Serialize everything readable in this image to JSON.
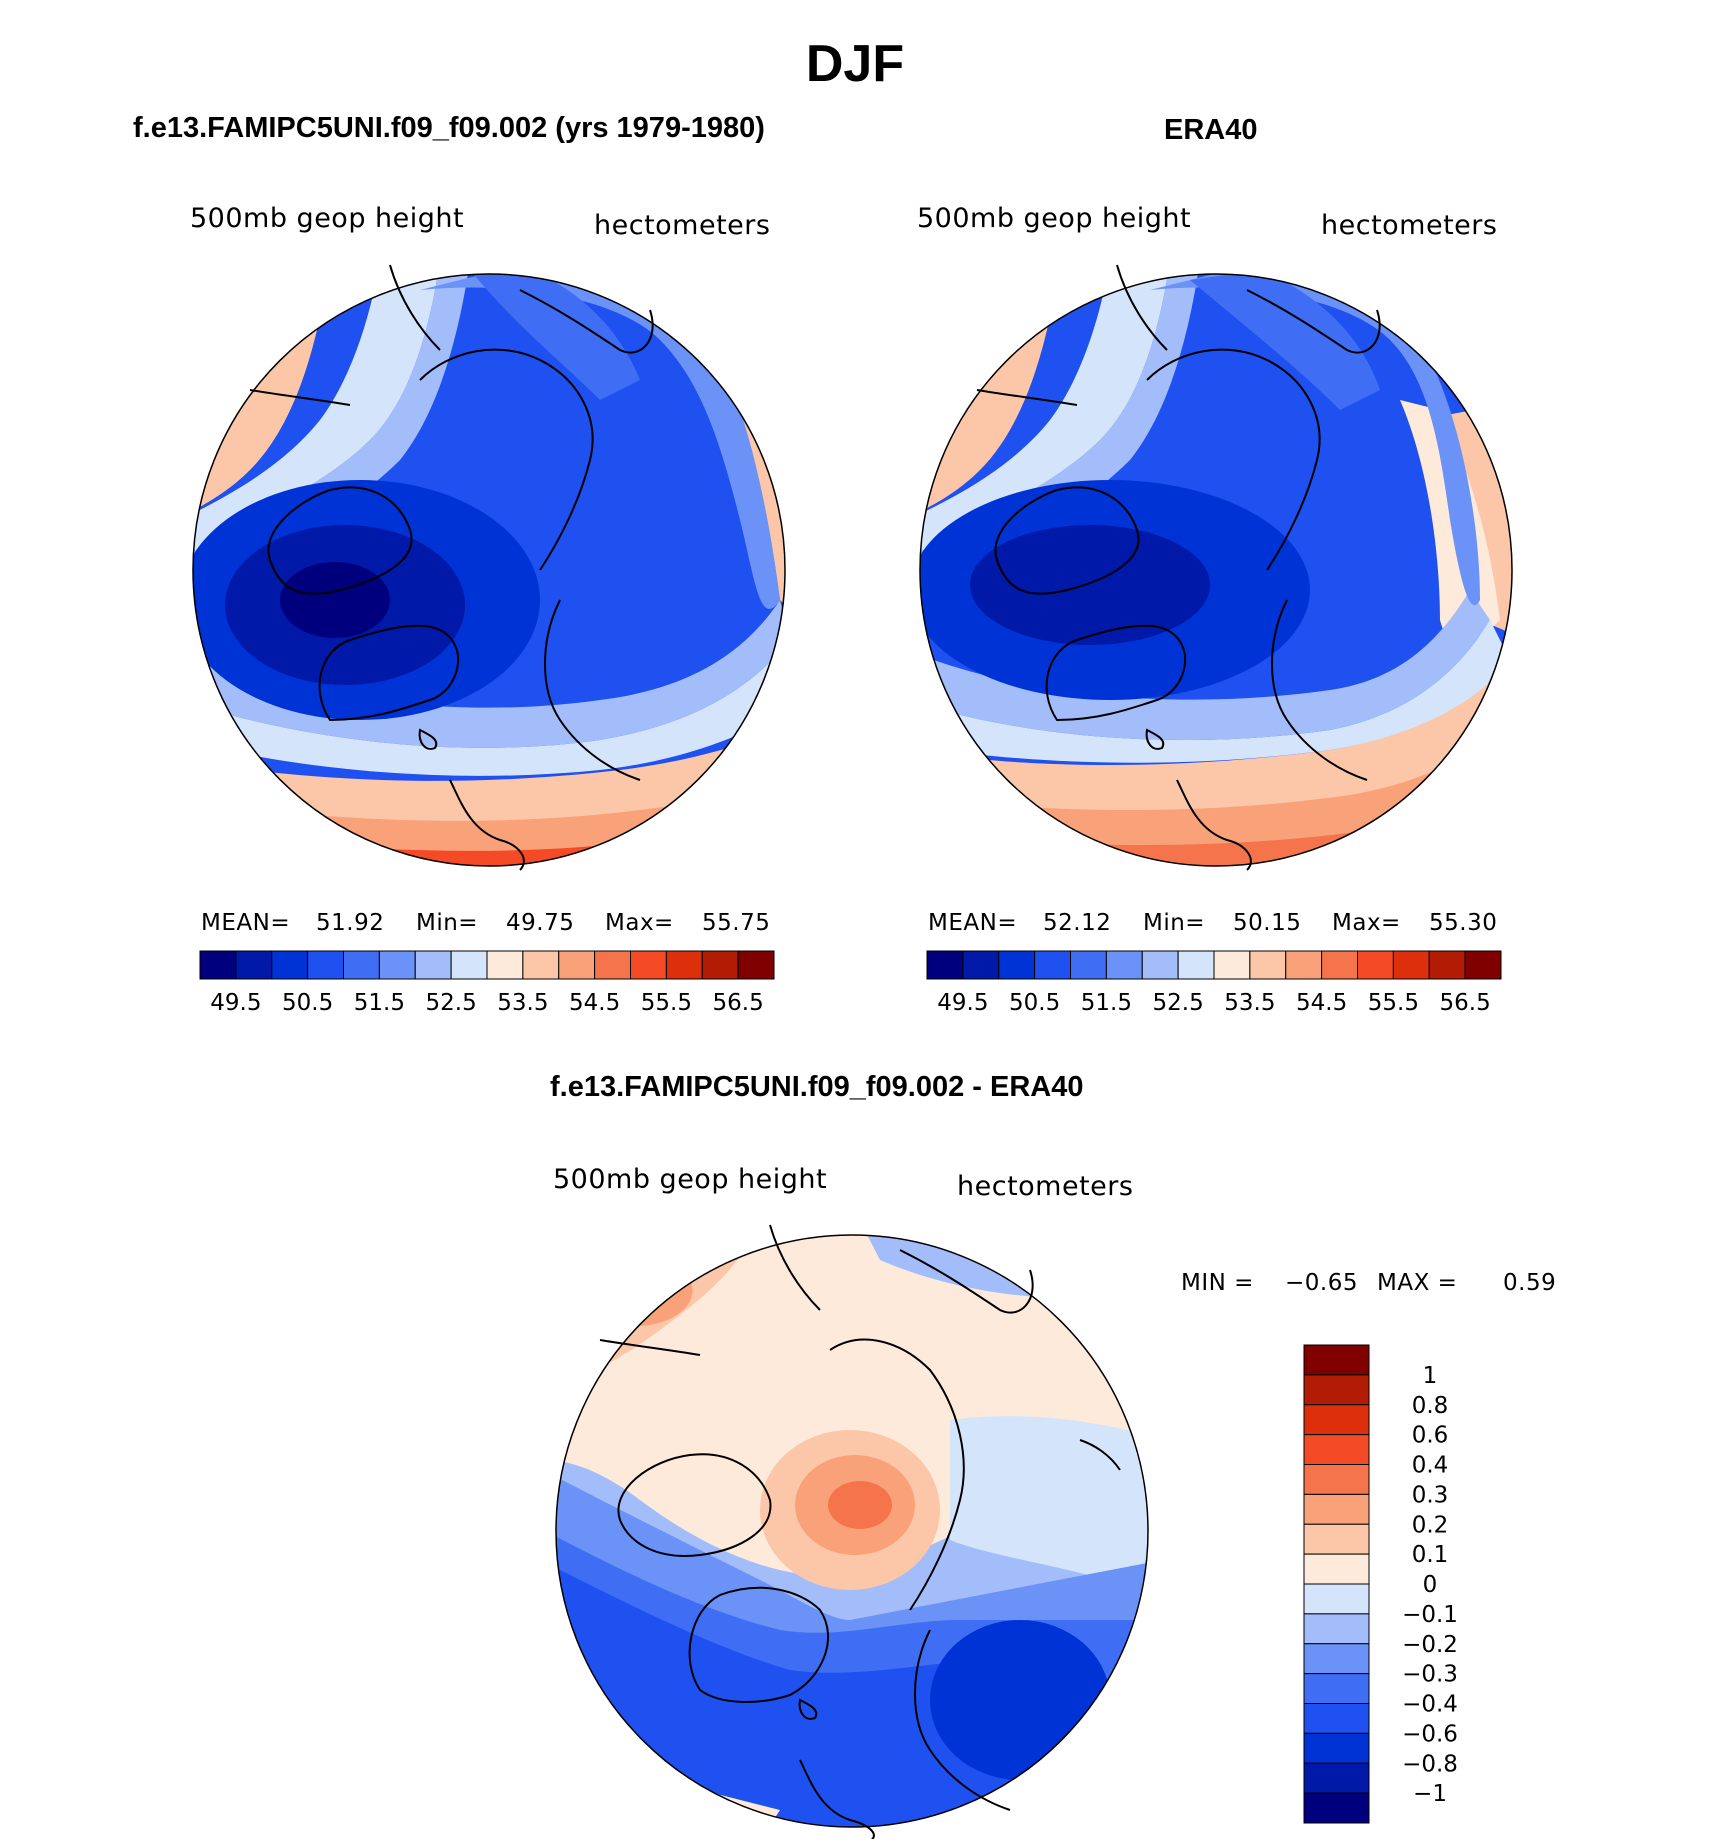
{
  "figure": {
    "title": "DJF"
  },
  "chart_data": [
    {
      "type": "heatmap",
      "panel": "model",
      "title": "f.e13.FAMIPC5UNI.f09_f09.002 (yrs 1979-1980)",
      "left_label": "500mb geop height",
      "right_label": "hectometers",
      "stats": {
        "mean_label": "MEAN=",
        "mean": "51.92",
        "min_label": "Min=",
        "min": "49.75",
        "max_label": "Max=",
        "max": "55.75"
      },
      "colorbar_ticks": [
        "49.5",
        "50.5",
        "51.5",
        "52.5",
        "53.5",
        "54.5",
        "55.5",
        "56.5"
      ]
    },
    {
      "type": "heatmap",
      "panel": "obs",
      "title": "ERA40",
      "left_label": "500mb geop height",
      "right_label": "hectometers",
      "stats": {
        "mean_label": "MEAN=",
        "mean": "52.12",
        "min_label": "Min=",
        "min": "50.15",
        "max_label": "Max=",
        "max": "55.30"
      },
      "colorbar_ticks": [
        "49.5",
        "50.5",
        "51.5",
        "52.5",
        "53.5",
        "54.5",
        "55.5",
        "56.5"
      ]
    },
    {
      "type": "heatmap",
      "panel": "difference",
      "title": "f.e13.FAMIPC5UNI.f09_f09.002 - ERA40",
      "left_label": "500mb geop height",
      "right_label": "hectometers",
      "stats": {
        "min_label": "MIN =",
        "min": "−0.65",
        "max_label": "MAX =",
        "max": "0.59"
      },
      "colorbar_ticks": [
        "1",
        "0.8",
        "0.6",
        "0.4",
        "0.3",
        "0.2",
        "0.1",
        "0",
        "−0.1",
        "−0.2",
        "−0.3",
        "−0.4",
        "−0.6",
        "−0.8",
        "−1"
      ]
    }
  ],
  "colors": {
    "mean_colorbar": [
      "#00007f",
      "#0019a8",
      "#0033d6",
      "#1f50f0",
      "#3f6ef5",
      "#6a92f7",
      "#a3bdfa",
      "#d4e5fb",
      "#fdeadb",
      "#fbc7a8",
      "#f9a27a",
      "#f6744c",
      "#f44a26",
      "#de2f0c",
      "#b31c04",
      "#800000"
    ],
    "diff_colorbar": [
      "#800000",
      "#b31c04",
      "#de2f0c",
      "#f44a26",
      "#f6744c",
      "#f9a27a",
      "#fbc7a8",
      "#fdeadb",
      "#d4e5fb",
      "#a3bdfa",
      "#6a92f7",
      "#3f6ef5",
      "#1f50f0",
      "#0033d6",
      "#0019a8",
      "#00007f"
    ]
  }
}
